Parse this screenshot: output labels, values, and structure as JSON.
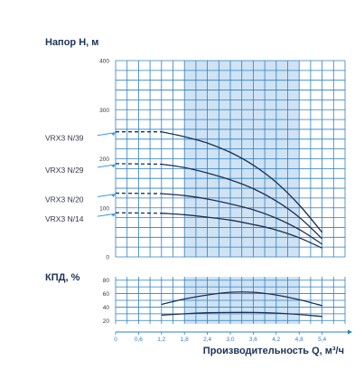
{
  "chart_data": [
    {
      "type": "line",
      "ylabel": "Напор H, м",
      "xlabel": "Производительность Q, м³/ч",
      "ylim": [
        0,
        400
      ],
      "y_ticks": [
        "0",
        "100",
        "200",
        "300",
        "400"
      ],
      "x_ticks": [
        "0",
        "0,6",
        "1,2",
        "1,8",
        "2,4",
        "3,0",
        "3,6",
        "4,2",
        "4,8",
        "5,4"
      ],
      "xlim": [
        0,
        6.0
      ],
      "highlight_range": [
        1.8,
        4.8
      ],
      "curve_start_x": 1.2,
      "dashed_range": [
        0,
        1.2
      ],
      "series": [
        {
          "name": "VRX3 N/39",
          "points": [
            [
              0,
              255
            ],
            [
              1.2,
              255
            ],
            [
              1.8,
              245
            ],
            [
              2.4,
              232
            ],
            [
              3.0,
              213
            ],
            [
              3.6,
              187
            ],
            [
              4.2,
              152
            ],
            [
              4.8,
              106
            ],
            [
              5.4,
              50
            ]
          ]
        },
        {
          "name": "VRX3 N/29",
          "points": [
            [
              0,
              190
            ],
            [
              1.2,
              189
            ],
            [
              1.8,
              182
            ],
            [
              2.4,
              171
            ],
            [
              3.0,
              157
            ],
            [
              3.6,
              139
            ],
            [
              4.2,
              114
            ],
            [
              4.8,
              81
            ],
            [
              5.4,
              37
            ]
          ]
        },
        {
          "name": "VRX3 N/20",
          "points": [
            [
              0,
              130
            ],
            [
              1.2,
              129
            ],
            [
              1.8,
              125
            ],
            [
              2.4,
              118
            ],
            [
              3.0,
              108
            ],
            [
              3.6,
              96
            ],
            [
              4.2,
              79
            ],
            [
              4.8,
              56
            ],
            [
              5.4,
              26
            ]
          ]
        },
        {
          "name": "VRX3 N/14",
          "points": [
            [
              0,
              90
            ],
            [
              1.2,
              89
            ],
            [
              1.8,
              86
            ],
            [
              2.4,
              81
            ],
            [
              3.0,
              75
            ],
            [
              3.6,
              66
            ],
            [
              4.2,
              55
            ],
            [
              4.8,
              39
            ],
            [
              5.4,
              18
            ]
          ]
        }
      ]
    },
    {
      "type": "line",
      "ylabel": "КПД, %",
      "ylim": [
        20,
        80
      ],
      "y_ticks": [
        "20",
        "40",
        "60",
        "80"
      ],
      "xlim": [
        0,
        6.0
      ],
      "series": [
        {
          "name": "",
          "points": [
            [
              1.2,
              44
            ],
            [
              1.8,
              52
            ],
            [
              2.4,
              58
            ],
            [
              3.0,
              62
            ],
            [
              3.6,
              62
            ],
            [
              4.2,
              58
            ],
            [
              4.8,
              51
            ],
            [
              5.4,
              42
            ]
          ]
        },
        {
          "name": "",
          "points": [
            [
              1.2,
              28
            ],
            [
              1.8,
              30
            ],
            [
              2.4,
              31.5
            ],
            [
              3.0,
              32
            ],
            [
              3.6,
              32
            ],
            [
              4.2,
              31
            ],
            [
              4.8,
              29
            ],
            [
              5.4,
              26
            ]
          ]
        }
      ]
    }
  ],
  "colors": {
    "grid": "#2f7fc1",
    "highlight": "#cfe3f4",
    "curve": "#1c2f55",
    "arrow": "#3a9be0",
    "title": "#1c3157"
  }
}
